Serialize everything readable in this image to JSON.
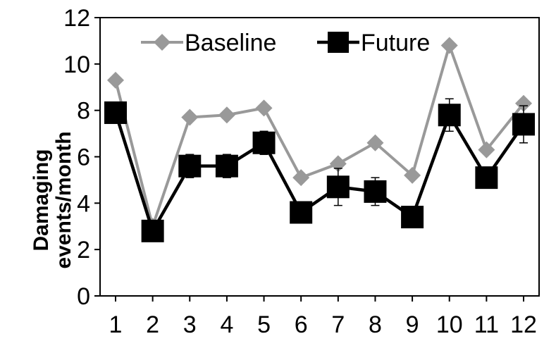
{
  "chart_data": {
    "type": "line",
    "title": "",
    "xlabel": "",
    "ylabel_line1": "Damaging",
    "ylabel_line2": "events/month",
    "categories": [
      "1",
      "2",
      "3",
      "4",
      "5",
      "6",
      "7",
      "8",
      "9",
      "10",
      "11",
      "12"
    ],
    "ylim": [
      0,
      12
    ],
    "yticks": [
      "0",
      "2",
      "4",
      "6",
      "8",
      "10",
      "12"
    ],
    "grid": false,
    "legend_placement": "top-left",
    "series": [
      {
        "name": "Baseline",
        "marker": "diamond",
        "color": "#999999",
        "values": [
          9.3,
          3.0,
          7.7,
          7.8,
          8.1,
          5.1,
          5.7,
          6.6,
          5.2,
          10.8,
          6.3,
          8.3
        ]
      },
      {
        "name": "Future",
        "marker": "square",
        "color": "#000000",
        "values": [
          7.9,
          2.8,
          5.6,
          5.6,
          6.6,
          3.6,
          4.7,
          4.5,
          3.4,
          7.8,
          5.1,
          7.4
        ],
        "error": [
          0.3,
          0.2,
          0.5,
          0.5,
          0.5,
          0.2,
          0.8,
          0.6,
          0.3,
          0.7,
          0.4,
          0.8
        ]
      }
    ]
  }
}
